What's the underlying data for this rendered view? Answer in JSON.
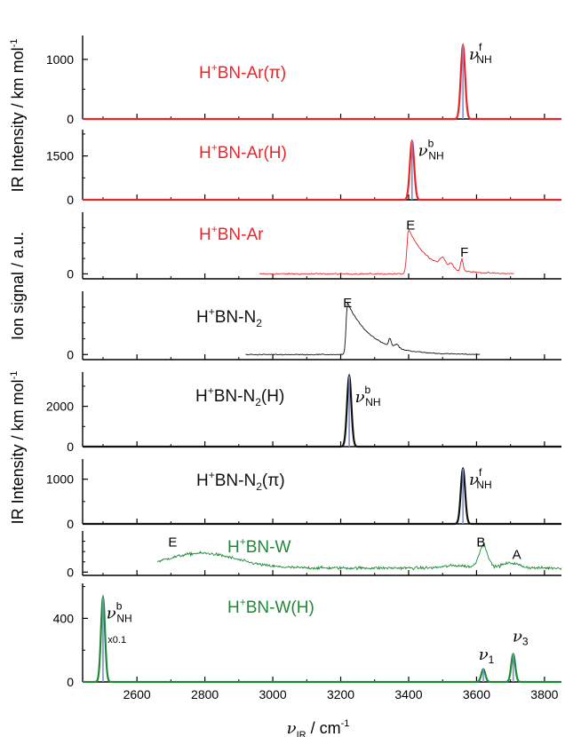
{
  "chart_data": {
    "type": "line",
    "x_axis": {
      "label": "ν",
      "label_sub": "IR",
      "label_unit": " / cm",
      "label_unit_sup": "-1",
      "range": [
        2440,
        3850
      ],
      "ticks": [
        2600,
        2800,
        3000,
        3200,
        3400,
        3600,
        3800
      ],
      "tick_labels": [
        "2600",
        "2800",
        "3000",
        "3200",
        "3400",
        "3600",
        "3800"
      ]
    },
    "y_axis_labels": {
      "upper_calc": "IR Intensity / km mol",
      "upper_calc_sup": "-1",
      "exp": "Ion signal / a.u.",
      "lower_calc": "IR Intensity / km mol",
      "lower_calc_sup": "-1"
    },
    "colors": {
      "red": "#e8262a",
      "black": "#111111",
      "green": "#1e8a35",
      "stick": "#7b8fd6"
    },
    "panels": [
      {
        "kind": "calc",
        "color": "red",
        "title_parts": [
          "H",
          "+",
          "BN-Ar(π)"
        ],
        "ylim": [
          0,
          1400
        ],
        "yticks": [
          0,
          1000
        ],
        "ytick_labels": [
          "0",
          "1000"
        ],
        "peaks": [
          {
            "x": 3560,
            "height": 1230,
            "fwhm": 15
          }
        ],
        "annotations": [
          {
            "kind": "nu",
            "sup": "f",
            "sub": "NH",
            "x": 3578,
            "y": 1000
          }
        ]
      },
      {
        "kind": "calc",
        "color": "red",
        "title_parts": [
          "H",
          "+",
          "BN-Ar(H)"
        ],
        "ylim": [
          0,
          2400
        ],
        "yticks": [
          0,
          1500
        ],
        "ytick_labels": [
          "0",
          "1500"
        ],
        "peaks": [
          {
            "x": 3410,
            "height": 2000,
            "fwhm": 15
          }
        ],
        "annotations": [
          {
            "kind": "nu",
            "sup": "b",
            "sub": "NH",
            "x": 3428,
            "y": 1500
          }
        ]
      },
      {
        "kind": "exp",
        "color": "red",
        "title_parts": [
          "H",
          "+",
          "BN-Ar"
        ],
        "ylim": [
          -0.08,
          1.0
        ],
        "yticks": [
          0
        ],
        "ytick_labels": [
          "0"
        ],
        "x_start": 2960,
        "x_end": 3710,
        "step": 3,
        "noise": 0.012,
        "baseline": 0.0,
        "features": [
          {
            "shape": "asym",
            "x": 3400,
            "height": 0.72,
            "rise": 5,
            "decay": 60
          },
          {
            "shape": "gauss",
            "x": 3500,
            "height": 0.14,
            "fwhm": 20
          },
          {
            "shape": "gauss",
            "x": 3525,
            "height": 0.09,
            "fwhm": 14
          },
          {
            "shape": "gauss",
            "x": 3557,
            "height": 0.2,
            "fwhm": 8
          }
        ],
        "annotations": [
          {
            "kind": "text",
            "text": "E",
            "x": 3393,
            "y": 0.72
          },
          {
            "kind": "text",
            "text": "F",
            "x": 3552,
            "y": 0.28
          }
        ]
      },
      {
        "kind": "exp",
        "color": "black",
        "title_parts": [
          "H",
          "+",
          "BN-N",
          "2",
          ""
        ],
        "ylim": [
          -0.08,
          1.0
        ],
        "yticks": [
          0
        ],
        "ytick_labels": [
          "0"
        ],
        "x_start": 2920,
        "x_end": 3610,
        "step": 3,
        "noise": 0.008,
        "baseline": 0.0,
        "features": [
          {
            "shape": "asym",
            "x": 3220,
            "height": 0.82,
            "rise": 4,
            "decay": 70
          },
          {
            "shape": "gauss",
            "x": 3345,
            "height": 0.13,
            "fwhm": 8
          },
          {
            "shape": "gauss",
            "x": 3365,
            "height": 0.06,
            "fwhm": 14
          }
        ],
        "annotations": [
          {
            "kind": "text",
            "text": "E",
            "x": 3207,
            "y": 0.75
          }
        ]
      },
      {
        "kind": "calc",
        "color": "black",
        "title_parts": [
          "H",
          "+",
          "BN-N",
          "2",
          "(H)"
        ],
        "ylim": [
          0,
          3700
        ],
        "yticks": [
          0,
          2000
        ],
        "ytick_labels": [
          "0",
          "2000"
        ],
        "peaks": [
          {
            "x": 3225,
            "height": 3500,
            "fwhm": 15
          }
        ],
        "annotations": [
          {
            "kind": "nu",
            "sup": "b",
            "sub": "NH",
            "x": 3242,
            "y": 2200
          }
        ]
      },
      {
        "kind": "calc",
        "color": "black",
        "title_parts": [
          "H",
          "+",
          "BN-N",
          "2",
          "(π)"
        ],
        "ylim": [
          0,
          1450
        ],
        "yticks": [
          0,
          1000
        ],
        "ytick_labels": [
          "0",
          "1000"
        ],
        "peaks": [
          {
            "x": 3560,
            "height": 1230,
            "fwhm": 15
          }
        ],
        "annotations": [
          {
            "kind": "nu",
            "sup": "f",
            "sub": "NH",
            "x": 3578,
            "y": 870
          }
        ]
      },
      {
        "kind": "exp",
        "color": "green",
        "title_parts": [
          "H",
          "+",
          "BN-W"
        ],
        "ylim": [
          -0.08,
          1.0
        ],
        "yticks": [
          0
        ],
        "ytick_labels": [
          "0"
        ],
        "x_start": 2660,
        "x_end": 3850,
        "step": 2,
        "noise": 0.035,
        "baseline": 0.1,
        "features": [
          {
            "shape": "gauss",
            "x": 2790,
            "height": 0.36,
            "fwhm": 240
          },
          {
            "shape": "gauss",
            "x": 3620,
            "height": 0.55,
            "fwhm": 30
          },
          {
            "shape": "gauss",
            "x": 3700,
            "height": 0.12,
            "fwhm": 60
          },
          {
            "shape": "gauss",
            "x": 3540,
            "height": 0.06,
            "fwhm": 80
          }
        ],
        "annotations": [
          {
            "kind": "text",
            "text": "E",
            "x": 2692,
            "y": 0.62
          },
          {
            "kind": "text",
            "text": "B",
            "x": 3600,
            "y": 0.62
          },
          {
            "kind": "text",
            "text": "A",
            "x": 3705,
            "y": 0.32
          }
        ]
      },
      {
        "kind": "calc",
        "color": "green",
        "title_parts": [
          "H",
          "+",
          "BN-W(H)"
        ],
        "ylim": [
          0,
          620
        ],
        "yticks": [
          0,
          400
        ],
        "ytick_labels": [
          "0",
          "400"
        ],
        "peaks": [
          {
            "x": 2500,
            "height": 530,
            "fwhm": 14
          },
          {
            "x": 3620,
            "height": 80,
            "fwhm": 14
          },
          {
            "x": 3708,
            "height": 175,
            "fwhm": 14
          }
        ],
        "annotations": [
          {
            "kind": "nu",
            "sup": "b",
            "sub": "NH",
            "x": 2510,
            "y": 400
          },
          {
            "kind": "text",
            "text": "x0.1",
            "x": 2514,
            "y": 245,
            "small": true
          },
          {
            "kind": "nu",
            "sup": "",
            "sub": "1",
            "x": 3606,
            "y": 140
          },
          {
            "kind": "nu",
            "sup": "",
            "sub": "3",
            "x": 3706,
            "y": 255
          }
        ]
      }
    ]
  }
}
